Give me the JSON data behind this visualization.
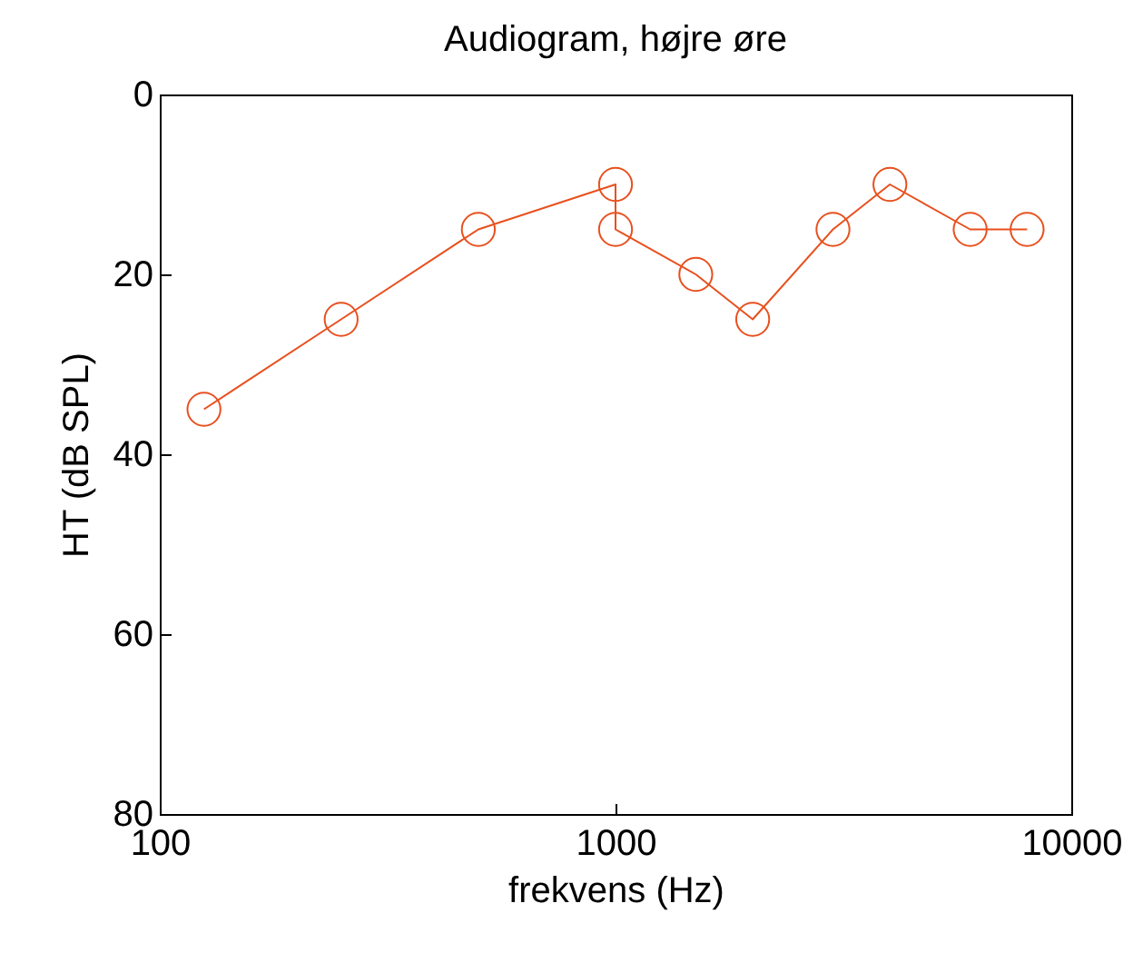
{
  "chart_data": {
    "type": "line",
    "title": "Audiogram, højre øre",
    "xlabel": "frekvens (Hz)",
    "ylabel": "HT (dB SPL)",
    "x": [
      125,
      250,
      500,
      1000,
      1000,
      1500,
      2000,
      3000,
      4000,
      6000,
      8000
    ],
    "series": [
      {
        "color": "#e8501e",
        "values": [
          35,
          25,
          15,
          10,
          15,
          20,
          25,
          15,
          10,
          15,
          15
        ]
      }
    ],
    "xlim": [
      100,
      10000
    ],
    "xticks": [
      100,
      1000,
      10000
    ],
    "ylim": [
      80,
      0
    ],
    "yticks": [
      0,
      20,
      40,
      60,
      80
    ],
    "log": "x",
    "grid": false,
    "legend": false,
    "marker": "circle",
    "line_style": "solid"
  }
}
